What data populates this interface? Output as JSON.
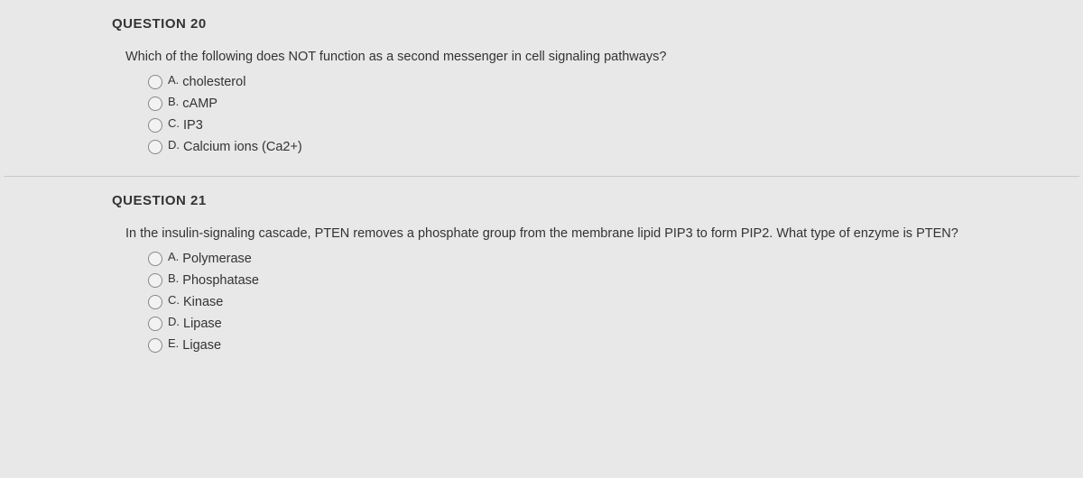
{
  "background_color": "#e8e8e8",
  "text_color": "#333333",
  "border_color": "#c8c8c8",
  "font_family": "Arial",
  "title_fontsize": 15,
  "prompt_fontsize": 14.5,
  "option_fontsize": 14.5,
  "questions": [
    {
      "title": "QUESTION 20",
      "prompt": "Which of the following does NOT function as a second messenger in cell signaling pathways?",
      "options": [
        {
          "letter": "A.",
          "text": "cholesterol"
        },
        {
          "letter": "B.",
          "text": "cAMP"
        },
        {
          "letter": "C.",
          "text": "IP3"
        },
        {
          "letter": "D.",
          "text": "Calcium ions (Ca2+)"
        }
      ]
    },
    {
      "title": "QUESTION 21",
      "prompt": "In the insulin-signaling cascade, PTEN removes a phosphate group from the membrane lipid PIP3 to form PIP2. What type of enzyme is PTEN?",
      "options": [
        {
          "letter": "A.",
          "text": "Polymerase"
        },
        {
          "letter": "B.",
          "text": "Phosphatase"
        },
        {
          "letter": "C.",
          "text": "Kinase"
        },
        {
          "letter": "D.",
          "text": "Lipase"
        },
        {
          "letter": "E.",
          "text": "Ligase"
        }
      ]
    }
  ]
}
